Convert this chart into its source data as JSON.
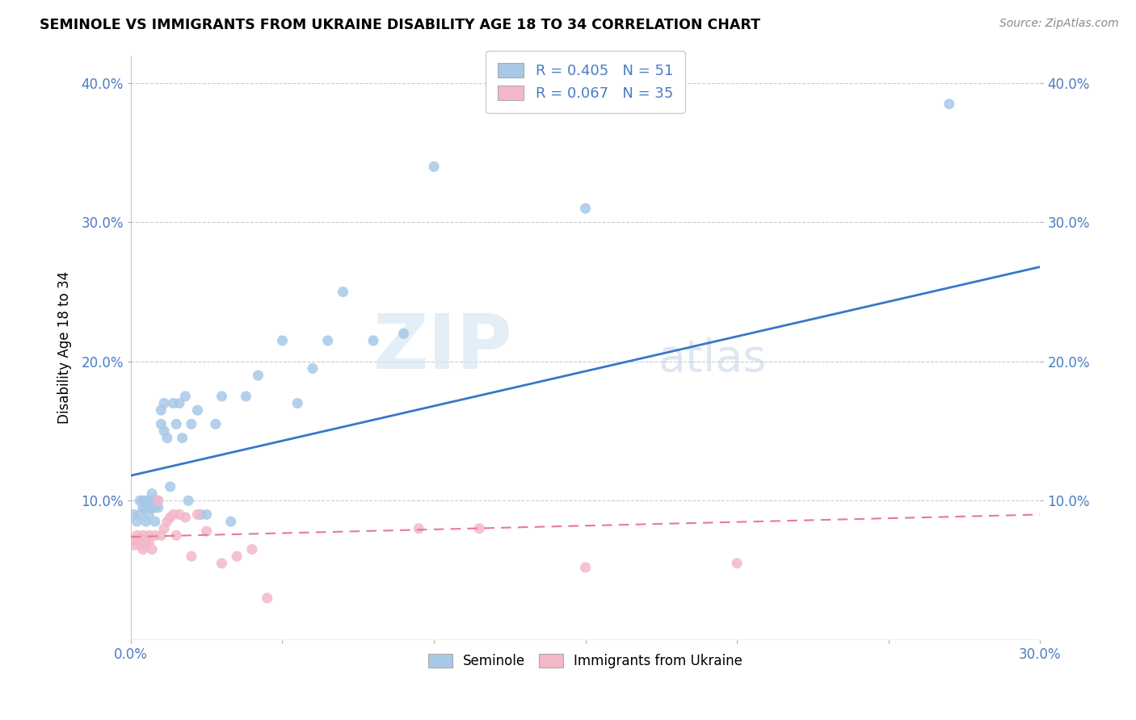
{
  "title": "SEMINOLE VS IMMIGRANTS FROM UKRAINE DISABILITY AGE 18 TO 34 CORRELATION CHART",
  "source": "Source: ZipAtlas.com",
  "ylabel": "Disability Age 18 to 34",
  "xlim": [
    0.0,
    0.3
  ],
  "ylim": [
    0.0,
    0.42
  ],
  "xticks": [
    0.0,
    0.05,
    0.1,
    0.15,
    0.2,
    0.25,
    0.3
  ],
  "yticks": [
    0.1,
    0.2,
    0.3,
    0.4
  ],
  "ytick_labels_left": [
    "10.0%",
    "20.0%",
    "30.0%",
    "40.0%"
  ],
  "ytick_labels_right": [
    "10.0%",
    "20.0%",
    "30.0%",
    "40.0%"
  ],
  "xtick_labels": [
    "0.0%",
    "",
    "",
    "",
    "",
    "",
    "30.0%"
  ],
  "legend_labels": [
    "Seminole",
    "Immigrants from Ukraine"
  ],
  "seminole_R": "R = 0.405",
  "seminole_N": "N = 51",
  "ukraine_R": "R = 0.067",
  "ukraine_N": "N = 35",
  "blue_color": "#a8c8e8",
  "pink_color": "#f4b8c8",
  "blue_line_color": "#3878c8",
  "pink_line_color": "#e87898",
  "watermark_zip": "ZIP",
  "watermark_atlas": "atlas",
  "blue_trend_start": 0.118,
  "blue_trend_end": 0.268,
  "pink_trend_start": 0.074,
  "pink_trend_end": 0.09,
  "blue_scatter_x": [
    0.001,
    0.002,
    0.003,
    0.003,
    0.004,
    0.004,
    0.005,
    0.005,
    0.005,
    0.006,
    0.006,
    0.006,
    0.007,
    0.007,
    0.007,
    0.008,
    0.008,
    0.008,
    0.009,
    0.009,
    0.01,
    0.01,
    0.011,
    0.011,
    0.012,
    0.013,
    0.014,
    0.015,
    0.016,
    0.017,
    0.018,
    0.019,
    0.02,
    0.022,
    0.023,
    0.025,
    0.028,
    0.03,
    0.033,
    0.038,
    0.042,
    0.05,
    0.055,
    0.06,
    0.065,
    0.07,
    0.08,
    0.09,
    0.1,
    0.15,
    0.27
  ],
  "blue_scatter_y": [
    0.09,
    0.085,
    0.09,
    0.1,
    0.095,
    0.1,
    0.095,
    0.1,
    0.085,
    0.09,
    0.095,
    0.1,
    0.095,
    0.1,
    0.105,
    0.095,
    0.1,
    0.085,
    0.1,
    0.095,
    0.155,
    0.165,
    0.15,
    0.17,
    0.145,
    0.11,
    0.17,
    0.155,
    0.17,
    0.145,
    0.175,
    0.1,
    0.155,
    0.165,
    0.09,
    0.09,
    0.155,
    0.175,
    0.085,
    0.175,
    0.19,
    0.215,
    0.17,
    0.195,
    0.215,
    0.25,
    0.215,
    0.22,
    0.34,
    0.31,
    0.385
  ],
  "pink_scatter_x": [
    0.001,
    0.001,
    0.002,
    0.002,
    0.003,
    0.003,
    0.004,
    0.004,
    0.004,
    0.005,
    0.005,
    0.006,
    0.006,
    0.007,
    0.008,
    0.009,
    0.01,
    0.011,
    0.012,
    0.013,
    0.014,
    0.015,
    0.016,
    0.018,
    0.02,
    0.022,
    0.025,
    0.03,
    0.035,
    0.04,
    0.045,
    0.095,
    0.115,
    0.15,
    0.2
  ],
  "pink_scatter_y": [
    0.068,
    0.072,
    0.07,
    0.075,
    0.068,
    0.073,
    0.07,
    0.065,
    0.075,
    0.068,
    0.072,
    0.07,
    0.075,
    0.065,
    0.075,
    0.1,
    0.075,
    0.08,
    0.085,
    0.088,
    0.09,
    0.075,
    0.09,
    0.088,
    0.06,
    0.09,
    0.078,
    0.055,
    0.06,
    0.065,
    0.03,
    0.08,
    0.08,
    0.052,
    0.055
  ]
}
